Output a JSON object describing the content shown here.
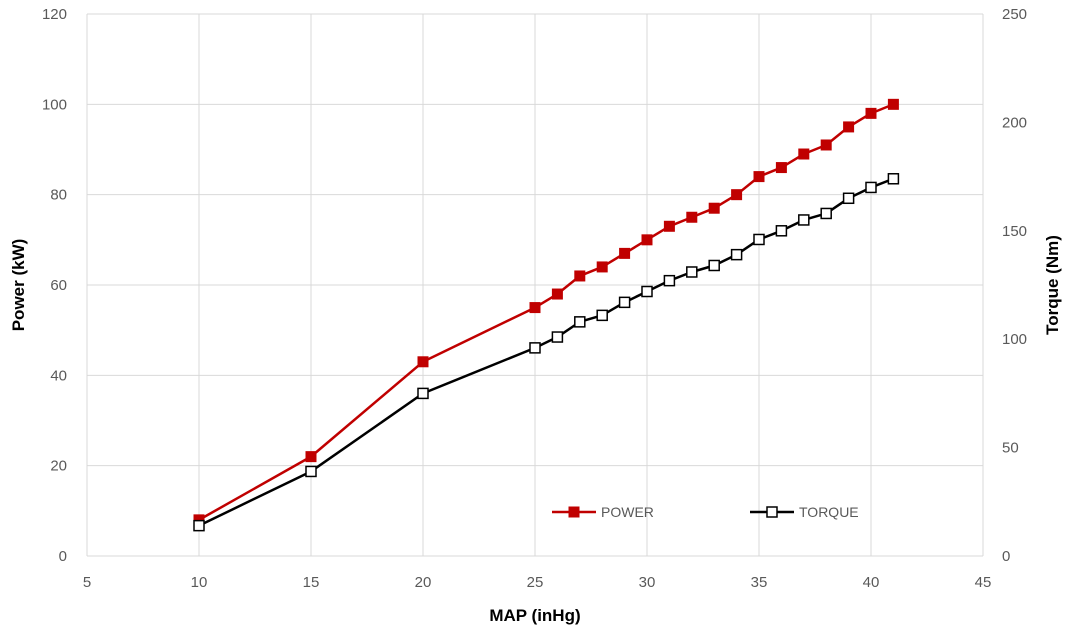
{
  "chart_data": {
    "type": "line",
    "title": "",
    "xlabel": "MAP (inHg)",
    "ylabel": "Power (kW)",
    "y2label": "Torque (Nm)",
    "xlim": [
      5,
      45
    ],
    "xticks": [
      5,
      10,
      15,
      20,
      25,
      30,
      35,
      40,
      45
    ],
    "ylim": [
      0,
      120
    ],
    "yticks": [
      0,
      20,
      40,
      60,
      80,
      100,
      120
    ],
    "y2lim": [
      0,
      250
    ],
    "y2ticks": [
      0,
      50,
      100,
      150,
      200,
      250
    ],
    "grid": true,
    "legend_position": "bottom-right",
    "series": [
      {
        "name": "POWER",
        "axis": "left",
        "color": "#c00000",
        "marker": "filled-square",
        "x": [
          10,
          15,
          20,
          25,
          26,
          27,
          28,
          29,
          30,
          31,
          32,
          33,
          34,
          35,
          36,
          37,
          38,
          39,
          40,
          41
        ],
        "values": [
          8,
          22,
          43,
          55,
          58,
          62,
          64,
          67,
          70,
          73,
          75,
          77,
          80,
          84,
          86,
          89,
          91,
          95,
          98,
          100
        ]
      },
      {
        "name": "TORQUE",
        "axis": "right",
        "color": "#000000",
        "marker": "hollow-square",
        "x": [
          10,
          15,
          20,
          25,
          26,
          27,
          28,
          29,
          30,
          31,
          32,
          33,
          34,
          35,
          36,
          37,
          38,
          39,
          40,
          41
        ],
        "values": [
          14,
          39,
          75,
          96,
          101,
          108,
          111,
          117,
          122,
          127,
          131,
          134,
          139,
          146,
          150,
          155,
          158,
          165,
          170,
          174
        ]
      }
    ]
  }
}
